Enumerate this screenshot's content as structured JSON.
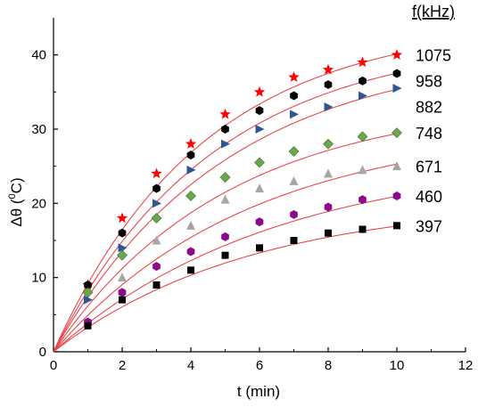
{
  "chart_data": {
    "type": "scatter",
    "xlabel": "t (min)",
    "ylabel_main": "Δθ (",
    "ylabel_sup": "0",
    "ylabel_end": "C)",
    "xlim": [
      0,
      12
    ],
    "ylim": [
      0,
      45
    ],
    "xticks": [
      0,
      2,
      4,
      6,
      8,
      10,
      12
    ],
    "yticks": [
      0,
      10,
      20,
      30,
      40
    ],
    "grid": false,
    "legend_title": "f(kHz)",
    "fit_color": "#e8474a",
    "series": [
      {
        "name": "1075",
        "marker": "star",
        "color": "#ff0000",
        "fit_a": 44.6,
        "fit_k": 0.23,
        "x": [
          1,
          2,
          3,
          4,
          5,
          6,
          7,
          8,
          9,
          10
        ],
        "y": [
          9,
          18,
          24,
          28,
          32,
          35,
          37,
          38,
          39,
          40
        ]
      },
      {
        "name": "958",
        "marker": "hexagon",
        "color": "#000000",
        "fit_a": 42.5,
        "fit_k": 0.215,
        "x": [
          1,
          2,
          3,
          4,
          5,
          6,
          7,
          8,
          9,
          10
        ],
        "y": [
          9,
          16,
          22,
          26.5,
          30,
          32.5,
          34.5,
          36,
          36.5,
          37.5
        ]
      },
      {
        "name": "882",
        "marker": "triangle",
        "color": "#2e5597",
        "fit_a": 40.9,
        "fit_k": 0.2,
        "x": [
          1,
          2,
          3,
          4,
          5,
          6,
          7,
          8,
          9,
          10
        ],
        "y": [
          7,
          14,
          20,
          24.5,
          28,
          30,
          32,
          33,
          34.5,
          35.5
        ]
      },
      {
        "name": "748",
        "marker": "diamond",
        "color": "#6aa84f",
        "fit_a": 34.0,
        "fit_k": 0.2,
        "x": [
          1,
          2,
          3,
          4,
          5,
          6,
          7,
          8,
          9,
          10
        ],
        "y": [
          8,
          13,
          18,
          21,
          23.5,
          25.5,
          27,
          28,
          29,
          29.5
        ]
      },
      {
        "name": "671",
        "marker": "up-triangle",
        "color": "#a6a6a6",
        "fit_a": 30.6,
        "fit_k": 0.175,
        "x": [
          1,
          2,
          3,
          4,
          5,
          6,
          7,
          8,
          9,
          10
        ],
        "y": [
          4,
          10,
          15,
          17,
          20.5,
          22,
          23,
          24,
          24.5,
          25
        ]
      },
      {
        "name": "460",
        "marker": "hexagon",
        "color": "#8b0a8b",
        "fit_a": 26.6,
        "fit_k": 0.155,
        "x": [
          1,
          2,
          3,
          4,
          5,
          6,
          7,
          8,
          9,
          10
        ],
        "y": [
          4,
          8,
          11.5,
          13.5,
          15.5,
          17.5,
          18.5,
          19.5,
          20.5,
          21
        ]
      },
      {
        "name": "397",
        "marker": "square",
        "color": "#000000",
        "fit_a": 20.5,
        "fit_k": 0.175,
        "x": [
          1,
          2,
          3,
          4,
          5,
          6,
          7,
          8,
          9,
          10
        ],
        "y": [
          3.5,
          7,
          9,
          11,
          13,
          14,
          15,
          16,
          16.5,
          17
        ]
      }
    ]
  }
}
